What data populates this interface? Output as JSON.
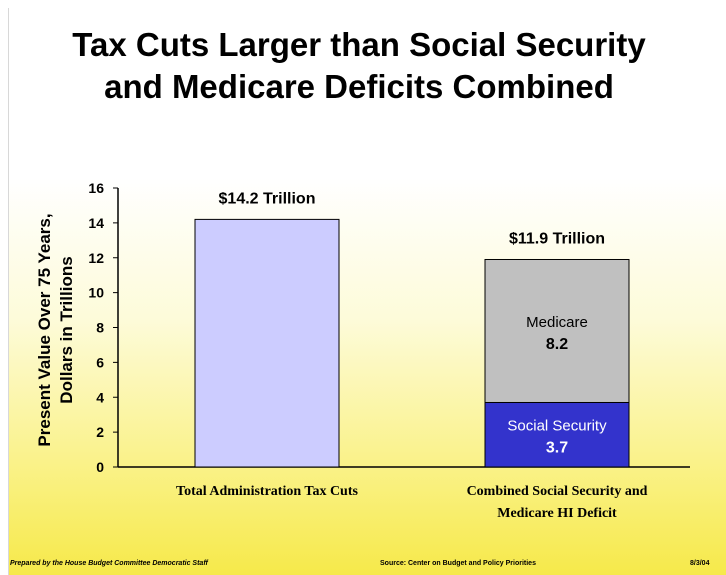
{
  "title_line1": "Tax Cuts Larger than Social Security",
  "title_line2": "and Medicare Deficits Combined",
  "footer": {
    "left": "Prepared by the House Budget Committee Democratic Staff",
    "center": "Source: Center on Budget and Policy Priorities",
    "right": "8/3/04"
  },
  "chart_data": {
    "type": "bar",
    "stacked": true,
    "ylabel_line1": "Present Value Over 75 Years,",
    "ylabel_line2": "Dollars in Trillions",
    "ylim": [
      0,
      16
    ],
    "yticks": [
      0,
      2,
      4,
      6,
      8,
      10,
      12,
      14,
      16
    ],
    "categories": [
      {
        "line1": "Total Administration Tax Cuts",
        "line2": ""
      },
      {
        "line1": "Combined Social Security and",
        "line2": "Medicare HI Deficit"
      }
    ],
    "totals": [
      "$14.2 Trillion",
      "$11.9 Trillion"
    ],
    "bars": [
      {
        "segments": [
          {
            "value": 14.2,
            "color": "#ccccff",
            "label": "",
            "value_label": ""
          }
        ]
      },
      {
        "segments": [
          {
            "value": 3.7,
            "color": "#3333cc",
            "label": "Social Security",
            "value_label": "3.7",
            "text_color": "#ffffff"
          },
          {
            "value": 8.2,
            "color": "#c0c0c0",
            "label": "Medicare",
            "value_label": "8.2",
            "text_color": "#000000"
          }
        ]
      }
    ],
    "grid": false
  }
}
